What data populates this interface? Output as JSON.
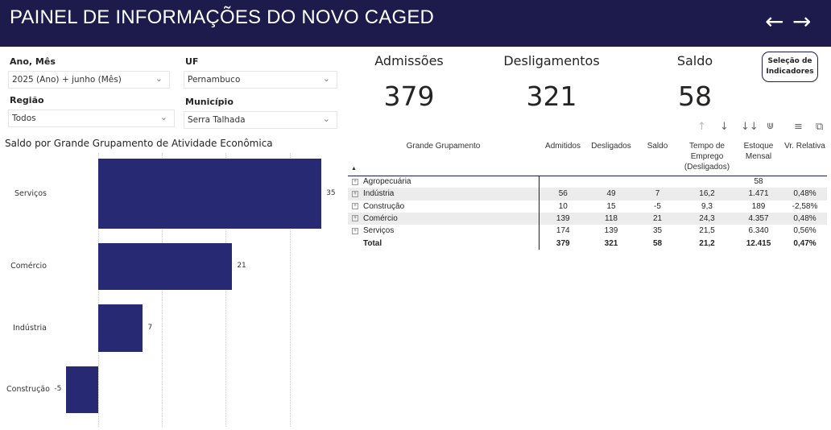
{
  "header": {
    "title": "PAINEL DE INFORMAÇÕES DO NOVO CAGED",
    "back_icon": "arrow-left-icon",
    "forward_icon": "arrow-right-icon"
  },
  "filters": {
    "ano_mes": {
      "label": "Ano, Mês",
      "value": "2025 (Ano) + junho (Mês)"
    },
    "uf": {
      "label": "UF",
      "value": "Pernambuco"
    },
    "regiao": {
      "label": "Região",
      "value": "Todos"
    },
    "municipio": {
      "label": "Município",
      "value": "Serra Talhada"
    }
  },
  "kpis": {
    "admissoes": {
      "label": "Admissões",
      "value": "379"
    },
    "desligamentos": {
      "label": "Desligamentos",
      "value": "321"
    },
    "saldo": {
      "label": "Saldo",
      "value": "58"
    }
  },
  "indicator_button": {
    "line1": "Seleção de",
    "line2": "Indicadores"
  },
  "table": {
    "headers": [
      "Grande Grupamento",
      "Admitidos",
      "Desligados",
      "Saldo",
      "Tempo de Emprego (Desligados)",
      "Estoque Mensal",
      "Vr. Relativa"
    ],
    "rows": [
      [
        "Agropecuária",
        "",
        "",
        "",
        "",
        "58",
        ""
      ],
      [
        "Indústria",
        "56",
        "49",
        "7",
        "16,2",
        "1.471",
        "0,48%"
      ],
      [
        "Construção",
        "10",
        "15",
        "-5",
        "9,3",
        "189",
        "-2,58%"
      ],
      [
        "Comércio",
        "139",
        "118",
        "21",
        "24,3",
        "4.357",
        "0,48%"
      ],
      [
        "Serviços",
        "174",
        "139",
        "35",
        "21,5",
        "6.340",
        "0,56%"
      ]
    ],
    "total": [
      "Total",
      "379",
      "321",
      "58",
      "21,2",
      "12.415",
      "0,47%"
    ]
  },
  "chart_data": {
    "type": "bar",
    "orientation": "horizontal",
    "title": "Saldo por Grande Grupamento de Atividade Econômica",
    "categories": [
      "Serviços",
      "Comércio",
      "Indústria",
      "Construção"
    ],
    "values": [
      35,
      21,
      7,
      -5
    ],
    "data_labels": [
      "35",
      "21",
      "7",
      "-5"
    ],
    "xlim": [
      -5,
      35
    ],
    "grid": true,
    "color": "#272a72"
  }
}
